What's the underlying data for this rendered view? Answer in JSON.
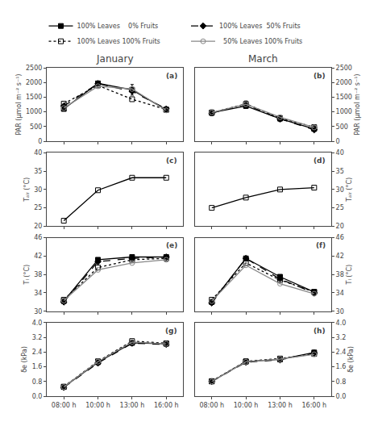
{
  "chart_data": [
    {
      "type": "line",
      "title": "January",
      "y_label": "PAR (μmol m⁻² s⁻¹)",
      "annotations": [
        "(a)"
      ],
      "categories": [
        "08:00 h",
        "10:00 h",
        "13:00 h",
        "16:00 h"
      ],
      "series": [
        {
          "color": "#000000",
          "line_style": "solid",
          "marker": "square",
          "values": [
            1100,
            1970,
            1750,
            1070
          ],
          "errors": [
            0,
            0,
            180,
            0
          ]
        },
        {
          "color": "#000000",
          "line_style": "dash",
          "marker": "diamond",
          "values": [
            1200,
            1960,
            1700,
            1100
          ]
        },
        {
          "color": "#000000",
          "line_style": "dot",
          "marker": "square-open",
          "values": [
            1280,
            1900,
            1430,
            1080
          ]
        },
        {
          "color": "#888888",
          "line_style": "solid",
          "marker": "circle-open",
          "values": [
            1130,
            1870,
            1780,
            1050
          ]
        }
      ],
      "ylim": [
        0,
        2500
      ],
      "yticks": [
        0,
        500,
        1000,
        1500,
        2000,
        2500
      ],
      "grid": false,
      "tick_labels": "y"
    },
    {
      "type": "line",
      "title": "March",
      "y_label": "PAR (μmol m⁻² s⁻¹)",
      "annotations": [
        "(b)"
      ],
      "legend": "top",
      "categories": [
        "08:00 h",
        "10:00 h",
        "13:00 h",
        "16:00 h"
      ],
      "series": [
        {
          "name": "100% Leaves    0% Fruits",
          "color": "#000000",
          "line_style": "solid",
          "marker": "square",
          "values": [
            970,
            1200,
            770,
            420
          ],
          "errors": [
            100,
            80,
            100,
            0
          ]
        },
        {
          "name": "100% Leaves  50% Fruits",
          "color": "#000000",
          "line_style": "dash",
          "marker": "diamond",
          "values": [
            960,
            1250,
            760,
            390
          ],
          "errors": [
            0,
            120,
            0,
            0
          ]
        },
        {
          "name": "100% Leaves 100% Fruits",
          "color": "#000000",
          "line_style": "dot",
          "marker": "square-open",
          "values": [
            970,
            1270,
            790,
            480
          ],
          "errors": [
            0,
            0,
            0,
            50
          ]
        },
        {
          "name": "  50% Leaves 100% Fruits",
          "color": "#888888",
          "line_style": "solid",
          "marker": "circle-open",
          "values": [
            980,
            1260,
            820,
            470
          ]
        }
      ],
      "ylim": [
        0,
        2500
      ],
      "yticks": [
        0,
        500,
        1000,
        1500,
        2000,
        2500
      ],
      "grid": false,
      "tick_labels": "y"
    },
    {
      "type": "line",
      "y_label": "Tₐᵢᵣ (°C)",
      "annotations": [
        "(c)"
      ],
      "categories": [
        "08:00 h",
        "10:00 h",
        "13:00 h",
        "16:00 h"
      ],
      "series": [
        {
          "color": "#000000",
          "line_style": "solid",
          "marker": "square-open",
          "values": [
            21.5,
            29.8,
            33.2,
            33.2
          ]
        }
      ],
      "ylim": [
        20,
        40
      ],
      "yticks": [
        20,
        25,
        30,
        35,
        40
      ],
      "grid": false,
      "tick_labels": "y"
    },
    {
      "type": "line",
      "y_label": "Tₐᵢᵣ (°C)",
      "annotations": [
        "(d)"
      ],
      "categories": [
        "08:00 h",
        "10:00 h",
        "13:00 h",
        "16:00 h"
      ],
      "series": [
        {
          "color": "#000000",
          "line_style": "solid",
          "marker": "square-open",
          "values": [
            25.0,
            27.8,
            30.0,
            30.5
          ]
        }
      ],
      "ylim": [
        20,
        40
      ],
      "yticks": [
        20,
        25,
        30,
        35,
        40
      ],
      "grid": false,
      "tick_labels": "y"
    },
    {
      "type": "line",
      "y_label": "Tₗ (°C)",
      "annotations": [
        "(e)"
      ],
      "categories": [
        "08:00 h",
        "10:00 h",
        "13:00 h",
        "16:00 h"
      ],
      "series": [
        {
          "color": "#000000",
          "line_style": "solid",
          "marker": "square",
          "values": [
            32.2,
            41.2,
            41.8,
            41.8
          ]
        },
        {
          "color": "#000000",
          "line_style": "dash",
          "marker": "diamond",
          "values": [
            32.0,
            40.8,
            41.5,
            41.8
          ]
        },
        {
          "color": "#000000",
          "line_style": "dot",
          "marker": "square-open",
          "values": [
            32.5,
            39.5,
            41.2,
            41.5
          ]
        },
        {
          "color": "#888888",
          "line_style": "solid",
          "marker": "circle-open",
          "values": [
            32.3,
            39.0,
            40.5,
            41.2
          ]
        }
      ],
      "ylim": [
        30,
        46
      ],
      "yticks": [
        30,
        34,
        38,
        42,
        46
      ],
      "grid": false,
      "tick_labels": "y"
    },
    {
      "type": "line",
      "y_label": "Tₗ (°C)",
      "annotations": [
        "(f)"
      ],
      "categories": [
        "08:00 h",
        "10:00 h",
        "13:00 h",
        "16:00 h"
      ],
      "series": [
        {
          "color": "#000000",
          "line_style": "solid",
          "marker": "square",
          "values": [
            32.0,
            41.5,
            37.5,
            34.2
          ]
        },
        {
          "color": "#000000",
          "line_style": "dash",
          "marker": "diamond",
          "values": [
            31.8,
            41.5,
            37.0,
            34.0
          ]
        },
        {
          "color": "#000000",
          "line_style": "dot",
          "marker": "square-open",
          "values": [
            32.5,
            40.5,
            36.8,
            34.2
          ]
        },
        {
          "color": "#888888",
          "line_style": "solid",
          "marker": "circle-open",
          "values": [
            32.2,
            40.0,
            36.0,
            33.8
          ]
        }
      ],
      "ylim": [
        30,
        46
      ],
      "yticks": [
        30,
        34,
        38,
        42,
        46
      ],
      "grid": false,
      "tick_labels": "y"
    },
    {
      "type": "line",
      "y_label": "δe (kPa)",
      "annotations": [
        "(g)"
      ],
      "categories": [
        "08:00 h",
        "10:00 h",
        "13:00 h",
        "16:00 h"
      ],
      "series": [
        {
          "color": "#000000",
          "line_style": "solid",
          "marker": "square",
          "values": [
            0.5,
            1.85,
            2.9,
            2.85
          ]
        },
        {
          "color": "#000000",
          "line_style": "dash",
          "marker": "diamond",
          "values": [
            0.48,
            1.8,
            2.88,
            2.82
          ]
        },
        {
          "color": "#000000",
          "line_style": "dot",
          "marker": "square-open",
          "values": [
            0.52,
            1.9,
            3.0,
            2.88
          ]
        },
        {
          "color": "#888888",
          "line_style": "solid",
          "marker": "circle-open",
          "values": [
            0.5,
            1.88,
            2.95,
            2.85
          ]
        }
      ],
      "ylim": [
        0.0,
        4.0
      ],
      "yticks": [
        {
          "value": 0.0,
          "label": "0.0"
        },
        0.8,
        1.6,
        2.4,
        3.2,
        {
          "value": 4.0,
          "label": "4.0"
        }
      ],
      "grid": false
    },
    {
      "type": "line",
      "y_label": "δe (kPa)",
      "annotations": [
        "(h)"
      ],
      "categories": [
        "08:00 h",
        "10:00 h",
        "13:00 h",
        "16:00 h"
      ],
      "series": [
        {
          "color": "#000000",
          "line_style": "solid",
          "marker": "square",
          "values": [
            0.8,
            1.88,
            2.0,
            2.38
          ]
        },
        {
          "color": "#000000",
          "line_style": "dash",
          "marker": "diamond",
          "values": [
            0.8,
            1.85,
            1.98,
            2.35
          ]
        },
        {
          "color": "#000000",
          "line_style": "dot",
          "marker": "square-open",
          "values": [
            0.82,
            1.9,
            2.05,
            2.3
          ]
        },
        {
          "color": "#888888",
          "line_style": "solid",
          "marker": "circle-open",
          "values": [
            0.8,
            1.87,
            2.02,
            2.28
          ]
        }
      ],
      "ylim": [
        0.0,
        4.0
      ],
      "yticks": [
        {
          "value": 0.0,
          "label": "0.0"
        },
        0.8,
        1.6,
        2.4,
        3.2,
        {
          "value": 4.0,
          "label": "4.0"
        }
      ],
      "grid": false
    }
  ]
}
